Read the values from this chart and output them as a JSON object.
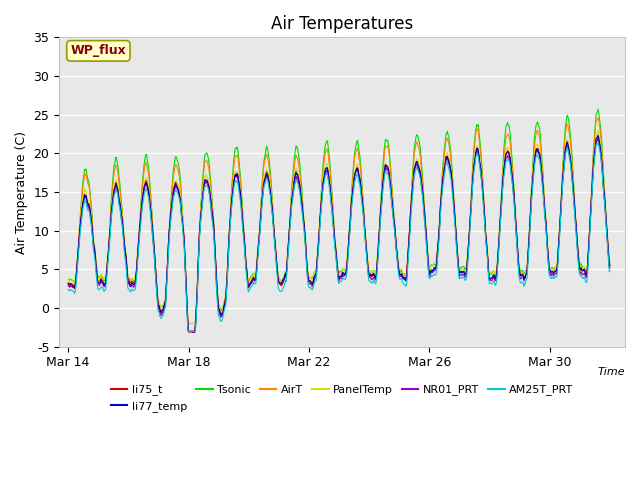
{
  "title": "Air Temperatures",
  "xlabel": "Time",
  "ylabel": "Air Temperature (C)",
  "ylim": [
    -5,
    35
  ],
  "yticks": [
    -5,
    0,
    5,
    10,
    15,
    20,
    25,
    30,
    35
  ],
  "plot_bg_color": "#e8e8e8",
  "series": [
    {
      "name": "li75_t",
      "color": "#cc0000"
    },
    {
      "name": "li77_temp",
      "color": "#0000cc"
    },
    {
      "name": "Tsonic",
      "color": "#00dd00"
    },
    {
      "name": "AirT",
      "color": "#ff8800"
    },
    {
      "name": "PanelTemp",
      "color": "#dddd00"
    },
    {
      "name": "NR01_PRT",
      "color": "#9900cc"
    },
    {
      "name": "AM25T_PRT",
      "color": "#00cccc"
    }
  ],
  "xtick_labels": [
    "Mar 14",
    "Mar 18",
    "Mar 22",
    "Mar 26",
    "Mar 30"
  ],
  "xtick_positions": [
    0,
    4,
    8,
    12,
    16
  ],
  "n_days": 18,
  "annotation_text": "WP_flux",
  "annotation_color": "#880000",
  "annotation_bg": "#ffffcc",
  "annotation_border": "#999900",
  "legend_ncol_row1": 6,
  "legend_ncol_row2": 1
}
